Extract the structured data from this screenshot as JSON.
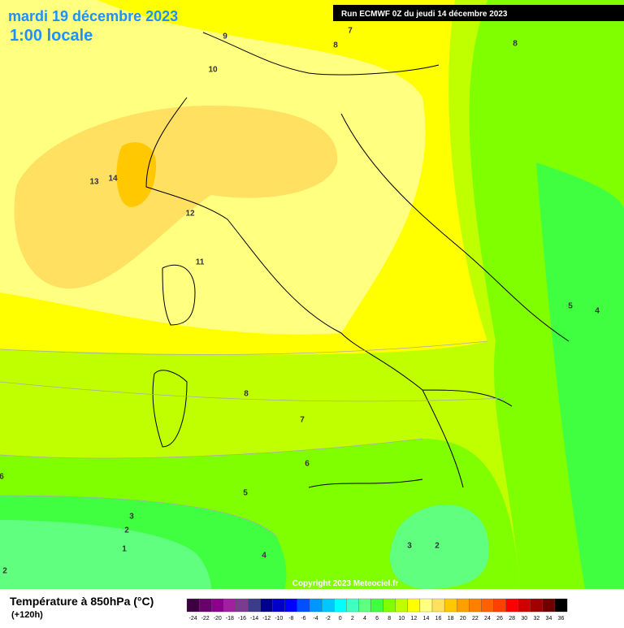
{
  "header": {
    "date": "mardi 19 décembre 2023",
    "time": "1:00 locale",
    "run": "Run ECMWF 0Z du jeudi 14 décembre 2023"
  },
  "contour_labels": [
    9,
    7,
    8,
    8,
    10,
    13,
    14,
    12,
    11,
    5,
    4,
    8,
    7,
    6,
    6,
    5,
    3,
    2,
    1,
    4,
    3,
    2,
    2
  ],
  "copyright": "Copyright 2023 Meteociel.fr",
  "legend": {
    "title": "Température à 850hPa (°C)",
    "subtitle": "(+120h)",
    "scale": [
      -24,
      -22,
      -20,
      -18,
      -16,
      -14,
      -12,
      -10,
      -8,
      -6,
      -4,
      -2,
      0,
      2,
      4,
      6,
      8,
      10,
      12,
      14,
      16,
      18,
      20,
      22,
      24,
      26,
      28,
      30,
      32,
      34,
      36
    ],
    "colors": [
      "#3c0040",
      "#6a006a",
      "#8c008c",
      "#a0209f",
      "#7a3c8c",
      "#3c3c8c",
      "#00008c",
      "#0000c8",
      "#0000ff",
      "#0050ff",
      "#0096ff",
      "#00c8ff",
      "#00ffff",
      "#40ffc0",
      "#60ff80",
      "#40ff40",
      "#80ff00",
      "#c0ff00",
      "#ffff00",
      "#ffff80",
      "#ffe060",
      "#ffc800",
      "#ffa000",
      "#ff8000",
      "#ff6000",
      "#ff4000",
      "#ff0000",
      "#d00000",
      "#a00000",
      "#700000",
      "#000000"
    ]
  }
}
